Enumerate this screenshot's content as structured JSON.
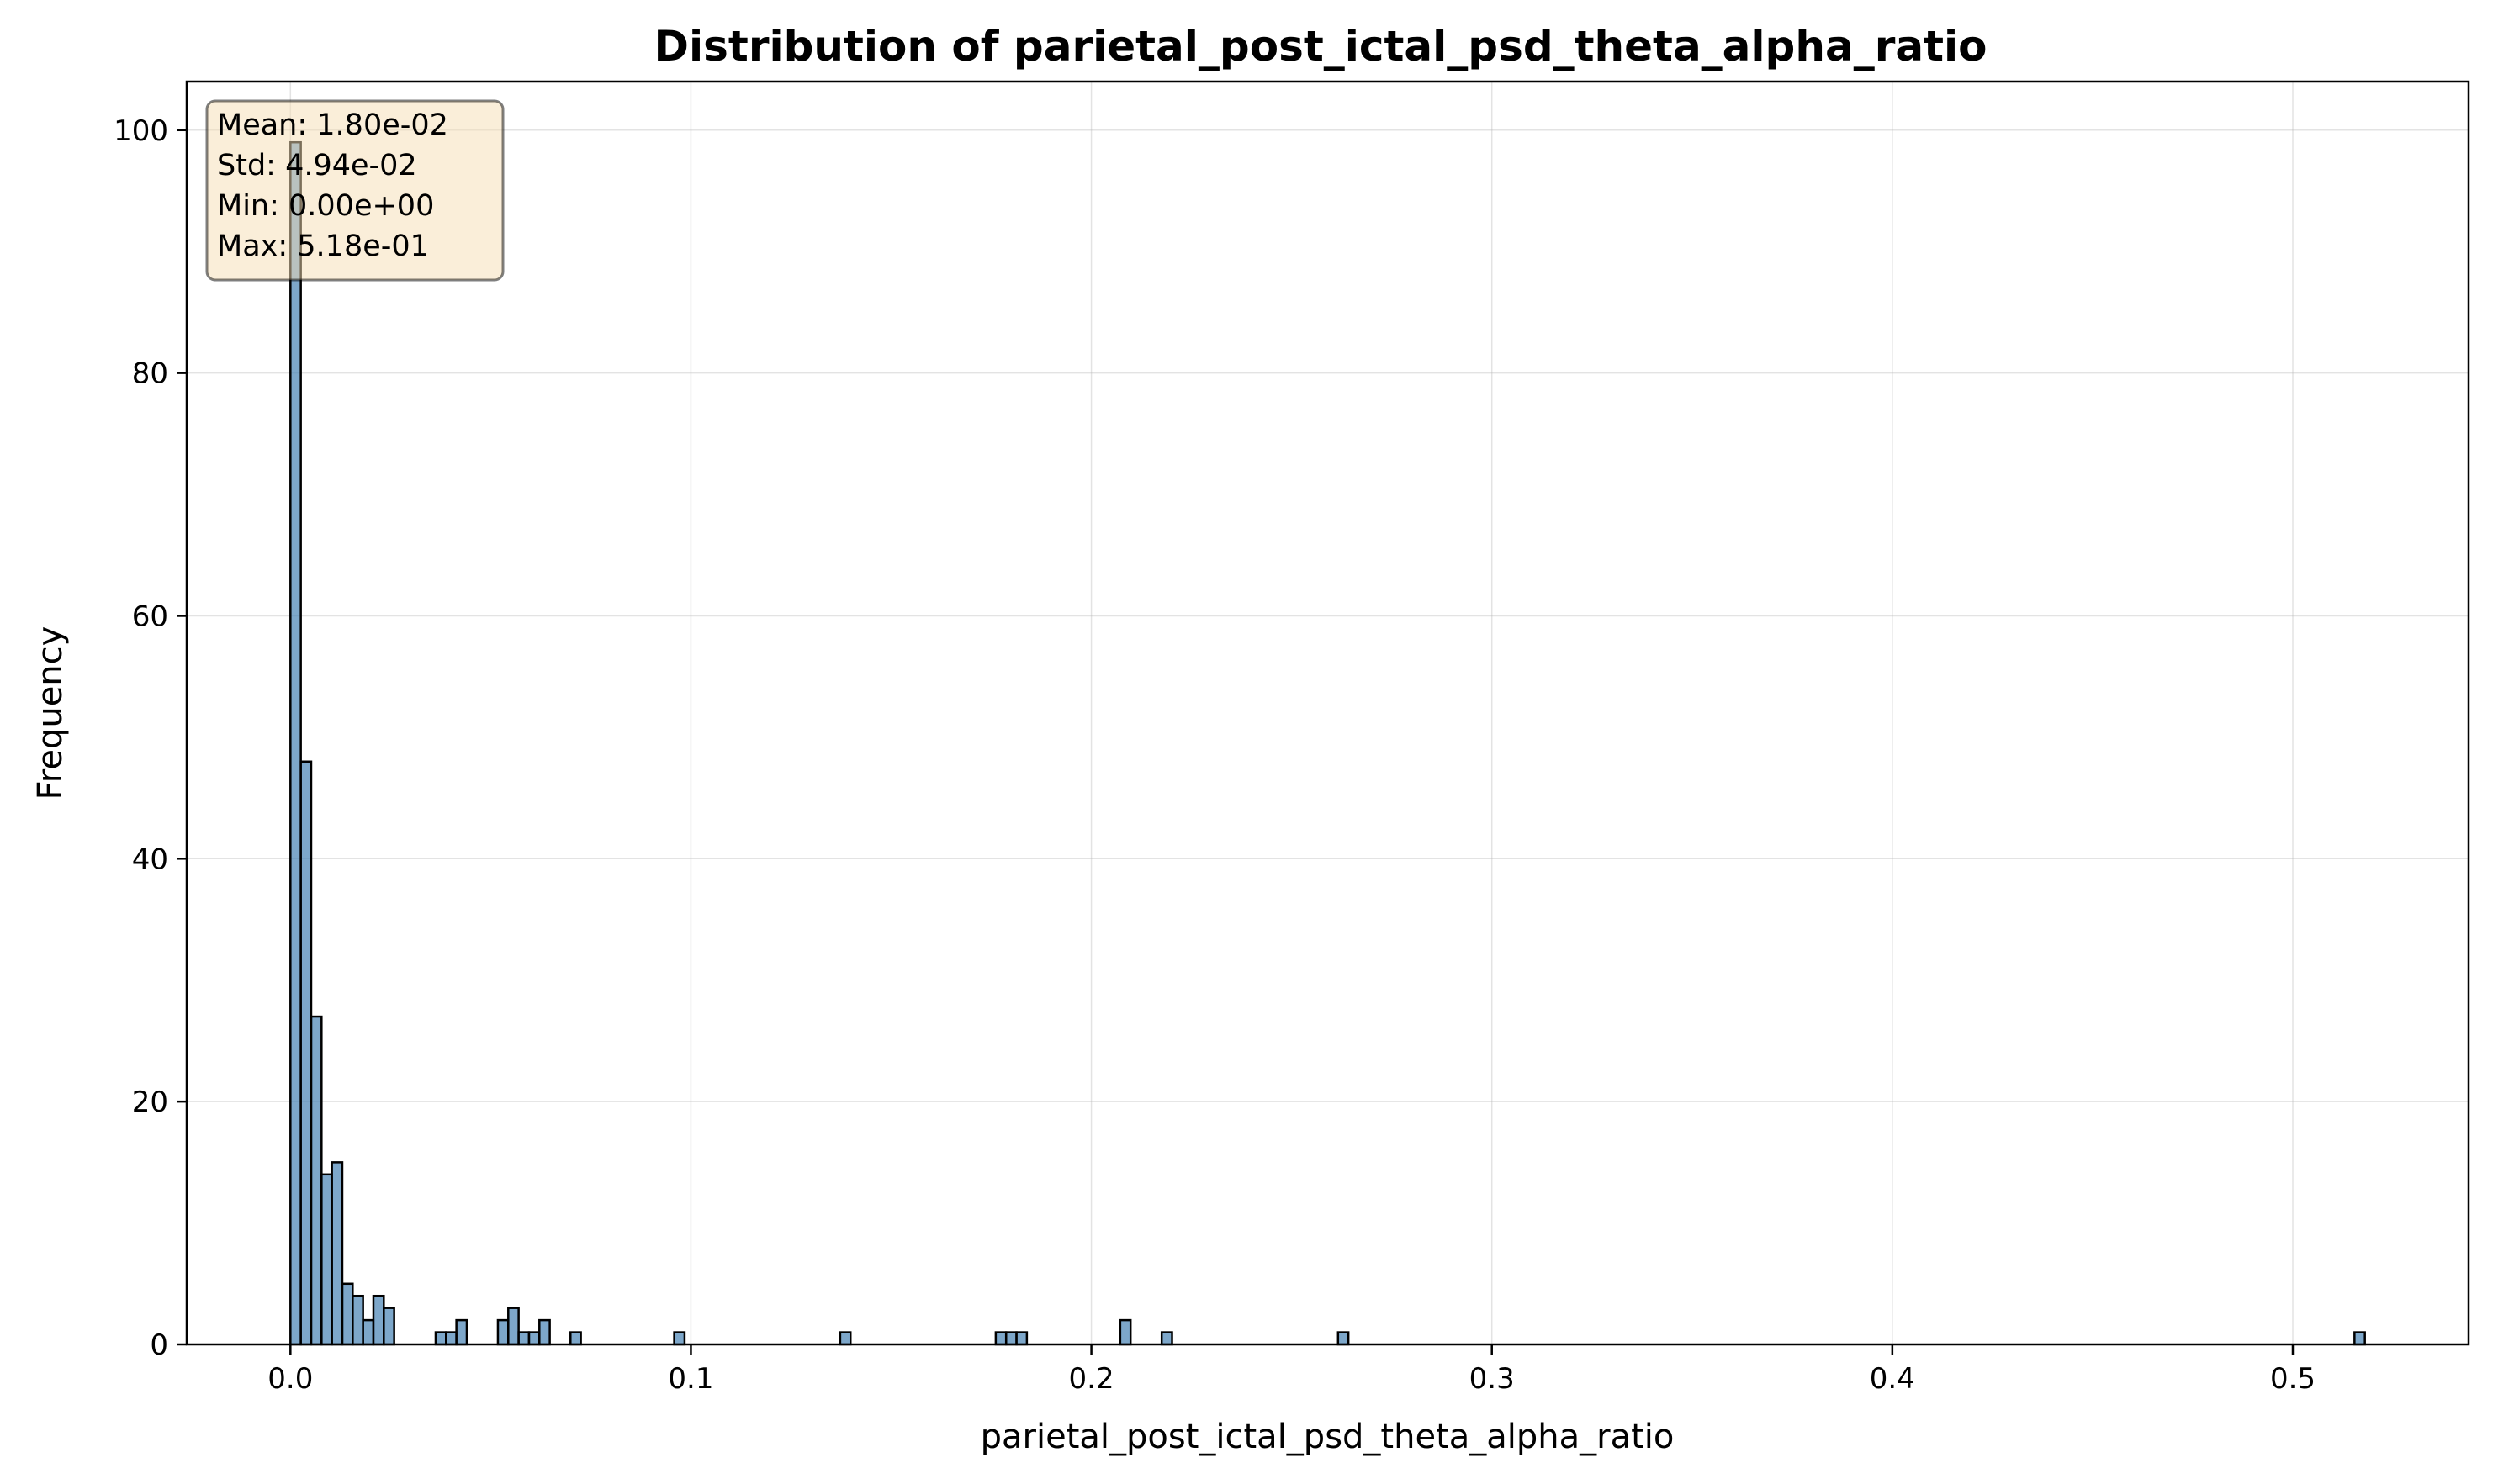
{
  "chart_data": {
    "type": "bar",
    "title": "Distribution of parietal_post_ictal_psd_theta_alpha_ratio",
    "xlabel": "parietal_post_ictal_psd_theta_alpha_ratio",
    "ylabel": "Frequency",
    "xlim": [
      -0.0259,
      0.5439
    ],
    "ylim": [
      0,
      104
    ],
    "x_ticks": [
      0.0,
      0.1,
      0.2,
      0.3,
      0.4,
      0.5
    ],
    "x_tick_labels": [
      "0.0",
      "0.1",
      "0.2",
      "0.3",
      "0.4",
      "0.5"
    ],
    "y_ticks": [
      0,
      20,
      40,
      60,
      80,
      100
    ],
    "y_tick_labels": [
      "0",
      "20",
      "40",
      "60",
      "80",
      "100"
    ],
    "grid": true,
    "bin_width": 0.00259,
    "bins": [
      {
        "x": 0.0,
        "count": 99
      },
      {
        "x": 0.00259,
        "count": 48
      },
      {
        "x": 0.00518,
        "count": 27
      },
      {
        "x": 0.00777,
        "count": 14
      },
      {
        "x": 0.01036,
        "count": 15
      },
      {
        "x": 0.01295,
        "count": 5
      },
      {
        "x": 0.01554,
        "count": 4
      },
      {
        "x": 0.01813,
        "count": 2
      },
      {
        "x": 0.02072,
        "count": 4
      },
      {
        "x": 0.02331,
        "count": 3
      },
      {
        "x": 0.03626,
        "count": 1
      },
      {
        "x": 0.03885,
        "count": 1
      },
      {
        "x": 0.04144,
        "count": 2
      },
      {
        "x": 0.0518,
        "count": 2
      },
      {
        "x": 0.05439,
        "count": 3
      },
      {
        "x": 0.05698,
        "count": 1
      },
      {
        "x": 0.05957,
        "count": 1
      },
      {
        "x": 0.06216,
        "count": 2
      },
      {
        "x": 0.06993,
        "count": 1
      },
      {
        "x": 0.09583,
        "count": 1
      },
      {
        "x": 0.13727,
        "count": 1
      },
      {
        "x": 0.17612,
        "count": 1
      },
      {
        "x": 0.17871,
        "count": 1
      },
      {
        "x": 0.1813,
        "count": 1
      },
      {
        "x": 0.2072,
        "count": 2
      },
      {
        "x": 0.21756,
        "count": 1
      },
      {
        "x": 0.26159,
        "count": 1
      },
      {
        "x": 0.51541,
        "count": 1
      }
    ],
    "stats_box": {
      "position": "top-left",
      "lines": [
        "Mean: 1.80e-02",
        "Std: 4.94e-02",
        "Min: 0.00e+00",
        "Max: 5.18e-01"
      ]
    },
    "colors": {
      "bar_fill": "#4682b4",
      "bar_edge": "#000000",
      "stats_box_fill": "#f5deb3"
    }
  }
}
